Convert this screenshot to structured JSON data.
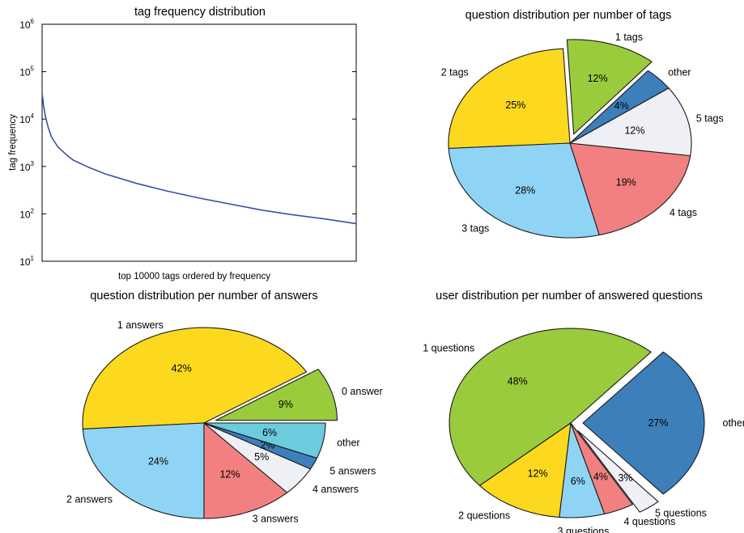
{
  "chart_data": [
    {
      "id": "tags_freq",
      "type": "line",
      "title": "tag frequency distribution",
      "xlabel": "top 10000 tags ordered by frequency",
      "ylabel": "tag frequency",
      "yscale": "log",
      "xlim": [
        1,
        10000
      ],
      "ylim": [
        10,
        1000000
      ],
      "yticks": [
        {
          "value": 10,
          "base": "10",
          "exp": "1"
        },
        {
          "value": 100,
          "base": "10",
          "exp": "2"
        },
        {
          "value": 1000,
          "base": "10",
          "exp": "3"
        },
        {
          "value": 10000,
          "base": "10",
          "exp": "4"
        },
        {
          "value": 100000,
          "base": "10",
          "exp": "5"
        },
        {
          "value": 1000000,
          "base": "10",
          "exp": "6"
        }
      ],
      "grid": false,
      "series": [
        {
          "color": "#3b50a3",
          "x": [
            1,
            50,
            100,
            200,
            300,
            500,
            800,
            1000,
            1500,
            2000,
            3000,
            4000,
            5000,
            6000,
            7000,
            8000,
            9000,
            10000
          ],
          "y": [
            35000,
            19000,
            12000,
            6500,
            4200,
            2600,
            1700,
            1350,
            950,
            700,
            440,
            300,
            215,
            160,
            120,
            95,
            78,
            62
          ]
        }
      ]
    },
    {
      "id": "tags_pie",
      "type": "pie",
      "title": "question distribution per number of tags",
      "slices": [
        {
          "label": "1 tags",
          "pct_label": "12%",
          "value": 12,
          "color": "#9acb3c",
          "explode": true
        },
        {
          "label": "2 tags",
          "pct_label": "25%",
          "value": 25,
          "color": "#fcd91f",
          "explode": false
        },
        {
          "label": "3 tags",
          "pct_label": "28%",
          "value": 28,
          "color": "#8fd4f5",
          "explode": false
        },
        {
          "label": "4 tags",
          "pct_label": "19%",
          "value": 19,
          "color": "#f28080",
          "explode": false
        },
        {
          "label": "5 tags",
          "pct_label": "12%",
          "value": 12,
          "color": "#eef0f6",
          "explode": false
        },
        {
          "label": "other",
          "pct_label": "4%",
          "value": 4,
          "color": "#3c7fbb",
          "explode": false
        }
      ]
    },
    {
      "id": "answers_pie",
      "type": "pie",
      "title": "question distribution per number of answers",
      "slices": [
        {
          "label": "0 answer",
          "pct_label": "9%",
          "value": 9,
          "color": "#9acb3c",
          "explode": true
        },
        {
          "label": "1 answers",
          "pct_label": "42%",
          "value": 42,
          "color": "#fcd91f",
          "explode": false
        },
        {
          "label": "2 answers",
          "pct_label": "24%",
          "value": 24,
          "color": "#8fd4f5",
          "explode": false
        },
        {
          "label": "3 answers",
          "pct_label": "12%",
          "value": 12,
          "color": "#f28080",
          "explode": false
        },
        {
          "label": "4 answers",
          "pct_label": "5%",
          "value": 5,
          "color": "#eef0f6",
          "explode": false
        },
        {
          "label": "5 answers",
          "pct_label": "2%",
          "value": 2,
          "color": "#3c7fbb",
          "explode": false
        },
        {
          "label": "other",
          "pct_label": "6%",
          "value": 6,
          "color": "#6ccbdc",
          "explode": false
        }
      ]
    },
    {
      "id": "users_pie",
      "type": "pie",
      "title": "user distribution per number of answered questions",
      "slices": [
        {
          "label": "other",
          "pct_label": "27%",
          "value": 27,
          "color": "#3c7fbb",
          "explode": true
        },
        {
          "label": "1 questions",
          "pct_label": "48%",
          "value": 48,
          "color": "#9acb3c",
          "explode": false
        },
        {
          "label": "2 questions",
          "pct_label": "12%",
          "value": 12,
          "color": "#fcd91f",
          "explode": false
        },
        {
          "label": "3 questions",
          "pct_label": "6%",
          "value": 6,
          "color": "#8fd4f5",
          "explode": false
        },
        {
          "label": "4 questions",
          "pct_label": "4%",
          "value": 4,
          "color": "#f28080",
          "explode": false
        },
        {
          "label": "5 questions",
          "pct_label": "3%",
          "value": 3,
          "color": "#eef0f6",
          "explode": true
        }
      ]
    }
  ]
}
